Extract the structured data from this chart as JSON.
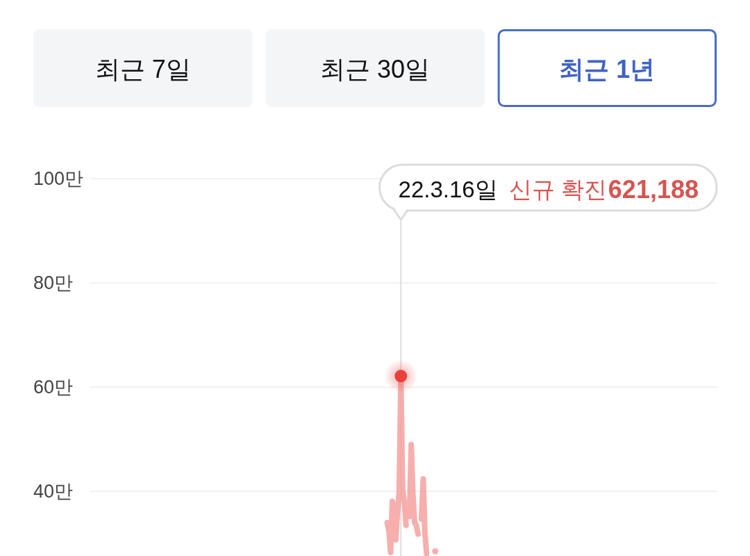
{
  "chart_data": [
    {
      "type": "other",
      "annotations": [
        "최근 7일",
        "최근 30일",
        "최근 1년"
      ]
    },
    {
      "type": "line",
      "annotations": [
        "22.3.16일",
        "신규 확진",
        "621,188"
      ],
      "categories": [
        null,
        null,
        null,
        null,
        null,
        null,
        null,
        null,
        null,
        null,
        null,
        null,
        null,
        null,
        null,
        null,
        null,
        null,
        null,
        null,
        null,
        null,
        null,
        null,
        null,
        null,
        null,
        null,
        null,
        null,
        null,
        null,
        null,
        null,
        null,
        null,
        null,
        null,
        null,
        null,
        null,
        null,
        null,
        null,
        null,
        null,
        null,
        null,
        null,
        null,
        null,
        null,
        null,
        null,
        null,
        null,
        null,
        null,
        null,
        null,
        null,
        null,
        null,
        null,
        null,
        null,
        null,
        null,
        null,
        null,
        null,
        null,
        null,
        null,
        null,
        null,
        null,
        null,
        null,
        null,
        null,
        null,
        null,
        null,
        null,
        null,
        null,
        null,
        null,
        null,
        null,
        null,
        null,
        null,
        null,
        null,
        null,
        null,
        null,
        null,
        null,
        null,
        null,
        null,
        null,
        null,
        null,
        null,
        null,
        null,
        null,
        null,
        null,
        null,
        null,
        null,
        null,
        null,
        null,
        null,
        null,
        null,
        null,
        null,
        null,
        null,
        null,
        null,
        null,
        null,
        null,
        null,
        null,
        null,
        null,
        null,
        null,
        null,
        null,
        null,
        null,
        null,
        null,
        null,
        null,
        null,
        null,
        null,
        null,
        null,
        null,
        null,
        null,
        null,
        null,
        null,
        null,
        null,
        null,
        null,
        null,
        null,
        null,
        null,
        null,
        null,
        null,
        null,
        null,
        null,
        null,
        null,
        null,
        null,
        null,
        null,
        null,
        null,
        null,
        null,
        null,
        null,
        null,
        null,
        null,
        null,
        null,
        null,
        null,
        null,
        null,
        null,
        null,
        null,
        null,
        null,
        null,
        null,
        null,
        null,
        null,
        null,
        null,
        null,
        null,
        null,
        null,
        null,
        null,
        null,
        null,
        null,
        null,
        null,
        null,
        null,
        null,
        null,
        null,
        null,
        null,
        null,
        null,
        null,
        null,
        null,
        null,
        null,
        null,
        null,
        null,
        null,
        null,
        null,
        null,
        null,
        null,
        null,
        null,
        null,
        null,
        null,
        null,
        null,
        null,
        null,
        null,
        null,
        null,
        null,
        null,
        null,
        null,
        null,
        null,
        null,
        null,
        null,
        null,
        null,
        null,
        null,
        null,
        null,
        null,
        null,
        null,
        null,
        null,
        null,
        null,
        null,
        null,
        null,
        null,
        null,
        null,
        null,
        null,
        null,
        null,
        null,
        null,
        null,
        null,
        null,
        null,
        null,
        null,
        null,
        null,
        null,
        null,
        null,
        null,
        null,
        null,
        null,
        null,
        null,
        null,
        null,
        null,
        null,
        null,
        null,
        null,
        null,
        null,
        null,
        null,
        null,
        null,
        null,
        null,
        null,
        null,
        null,
        null,
        null,
        null,
        null,
        null,
        null,
        null,
        null,
        null,
        null,
        null,
        null,
        null,
        null,
        null,
        null,
        null,
        null,
        null,
        null,
        null,
        null,
        null,
        null,
        null,
        null,
        null,
        null,
        null,
        null,
        null,
        null,
        null,
        null,
        null,
        null,
        null,
        null,
        null,
        null,
        null,
        null,
        null,
        null,
        null,
        null,
        null,
        null
      ],
      "values": [
        null,
        null,
        null,
        null,
        null,
        null,
        null,
        null,
        null,
        null,
        null,
        null,
        null,
        null,
        null,
        null,
        null,
        null,
        null,
        null,
        null,
        null,
        null,
        null,
        null,
        null,
        null,
        null,
        null,
        null,
        null,
        null,
        null,
        null,
        null,
        null,
        null,
        null,
        null,
        null,
        null,
        null,
        null,
        null,
        null,
        null,
        null,
        null,
        null,
        null,
        null,
        null,
        null,
        null,
        null,
        null,
        null,
        null,
        null,
        null,
        null,
        null,
        null,
        null,
        null,
        null,
        null,
        null,
        null,
        null,
        null,
        null,
        null,
        null,
        null,
        null,
        null,
        null,
        null,
        null,
        null,
        null,
        null,
        null,
        null,
        null,
        null,
        null,
        null,
        null,
        null,
        null,
        null,
        null,
        null,
        null,
        null,
        null,
        null,
        null,
        null,
        null,
        null,
        null,
        null,
        null,
        null,
        null,
        null,
        null,
        null,
        null,
        null,
        null,
        null,
        null,
        null,
        null,
        null,
        null,
        null,
        null,
        null,
        null,
        null,
        null,
        null,
        null,
        null,
        null,
        null,
        null,
        null,
        null,
        null,
        null,
        null,
        null,
        null,
        null,
        null,
        null,
        null,
        null,
        null,
        null,
        null,
        null,
        null,
        null,
        null,
        null,
        null,
        null,
        null,
        null,
        null,
        null,
        null,
        null,
        null,
        null,
        null,
        null,
        null,
        null,
        null,
        null,
        null,
        null,
        null,
        null,
        null,
        34,
        32.5,
        28.3,
        38.1,
        35,
        30.7,
        36,
        40,
        62.1188,
        40.5,
        38,
        33.5,
        null,
        35.2,
        49,
        39.5,
        34,
        33.5,
        31.8,
        null,
        34.7,
        42.4,
        32,
        28,
        null,
        null,
        null,
        null,
        28.5,
        null,
        null,
        null,
        null,
        null,
        null,
        null,
        null,
        null,
        null,
        null,
        null,
        null,
        null,
        null,
        null,
        null,
        null,
        null,
        null,
        null,
        null,
        null,
        null,
        null,
        null,
        null,
        null,
        null,
        null,
        null,
        null,
        null,
        null,
        null,
        null,
        null,
        null,
        null,
        null,
        null,
        null,
        null,
        null,
        null,
        null,
        null,
        null,
        null,
        null,
        null,
        null,
        null,
        null,
        null,
        null,
        null,
        null,
        null,
        null,
        null,
        null,
        null,
        null,
        null,
        null,
        null,
        null,
        null,
        null,
        null,
        null,
        null,
        null,
        null,
        null,
        null,
        null,
        null,
        null,
        null,
        null,
        null,
        null,
        null,
        null,
        null,
        null,
        null,
        null,
        null,
        null,
        null,
        null,
        null,
        null,
        null,
        null,
        null,
        null,
        null,
        null,
        null,
        null,
        null,
        null,
        null,
        null,
        null,
        null,
        null,
        null,
        null,
        null,
        null,
        null,
        null,
        null,
        null,
        null,
        null,
        null,
        null,
        null,
        null,
        null,
        null,
        null,
        null,
        null,
        null,
        null,
        null,
        null,
        null,
        null,
        null,
        null,
        null,
        null,
        null,
        null,
        null,
        null,
        null,
        null,
        null,
        null,
        null,
        null,
        null,
        null,
        null,
        null,
        null,
        null,
        null,
        null,
        null,
        null,
        null,
        null,
        null,
        null
      ],
      "color": "#f4a19d",
      "ylim": [
        27.6,
        100
      ],
      "yticks": [
        {
          "value": 40,
          "label": "40만"
        },
        {
          "value": 60,
          "label": "60만"
        },
        {
          "value": 80,
          "label": "80만"
        },
        {
          "value": 100,
          "label": "100만"
        }
      ],
      "grid": "y",
      "tick_labels": "y"
    }
  ]
}
